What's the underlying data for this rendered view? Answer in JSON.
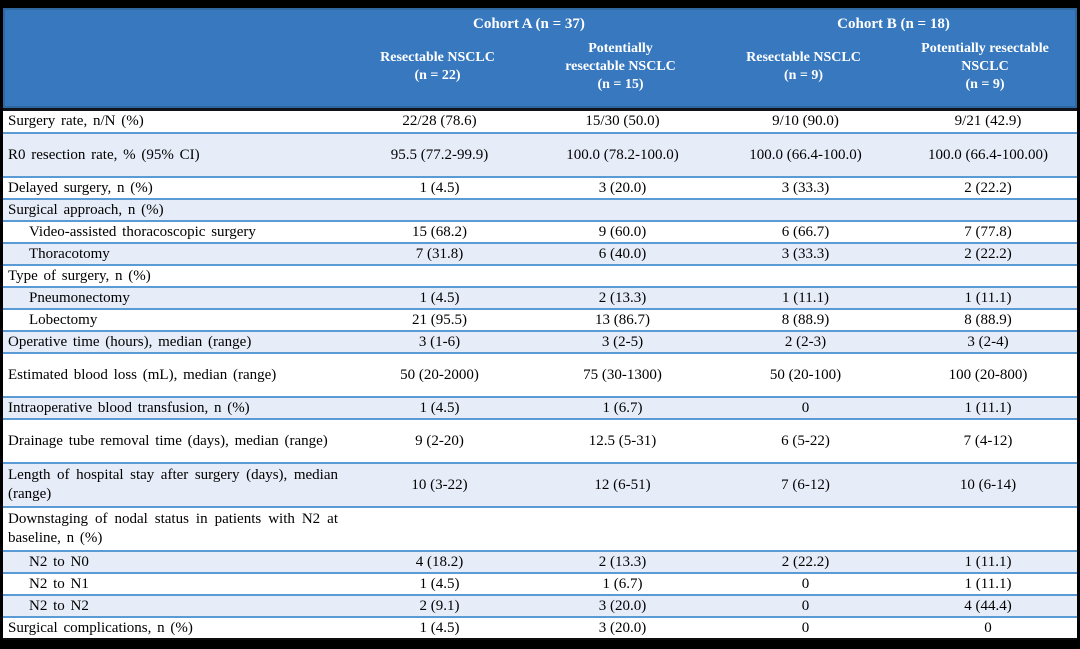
{
  "table": {
    "groups": [
      {
        "label": "Cohort A (n = 37)"
      },
      {
        "label": "Cohort B (n = 18)"
      }
    ],
    "columns": [
      "Resectable NSCLC\n(n = 22)",
      "Potentially\nresectable NSCLC\n(n = 15)",
      "Resectable NSCLC\n(n = 9)",
      "Potentially resectable\nNSCLC\n(n = 9)"
    ],
    "rows": [
      {
        "label": "Surgery rate, n/N (%)",
        "indent": false,
        "tall": false,
        "values": [
          "22/28 (78.6)",
          "15/30 (50.0)",
          "9/10 (90.0)",
          "9/21 (42.9)"
        ]
      },
      {
        "label": "R0 resection rate, % (95% CI)",
        "indent": false,
        "tall": true,
        "values": [
          "95.5 (77.2-99.9)",
          "100.0 (78.2-100.0)",
          "100.0 (66.4-100.0)",
          "100.0 (66.4-100.00)"
        ]
      },
      {
        "label": "Delayed surgery, n (%)",
        "indent": false,
        "tall": false,
        "values": [
          "1 (4.5)",
          "3 (20.0)",
          "3 (33.3)",
          "2 (22.2)"
        ]
      },
      {
        "label": "Surgical approach, n (%)",
        "indent": false,
        "tall": false,
        "values": [
          "",
          "",
          "",
          ""
        ]
      },
      {
        "label": "Video-assisted thoracoscopic surgery",
        "indent": true,
        "tall": false,
        "values": [
          "15 (68.2)",
          "9 (60.0)",
          "6 (66.7)",
          "7 (77.8)"
        ]
      },
      {
        "label": "Thoracotomy",
        "indent": true,
        "tall": false,
        "values": [
          "7 (31.8)",
          "6 (40.0)",
          "3 (33.3)",
          "2 (22.2)"
        ]
      },
      {
        "label": "Type of surgery, n (%)",
        "indent": false,
        "tall": false,
        "values": [
          "",
          "",
          "",
          ""
        ]
      },
      {
        "label": "Pneumonectomy",
        "indent": true,
        "tall": false,
        "values": [
          "1 (4.5)",
          "2 (13.3)",
          "1 (11.1)",
          "1 (11.1)"
        ]
      },
      {
        "label": "Lobectomy",
        "indent": true,
        "tall": false,
        "values": [
          "21 (95.5)",
          "13 (86.7)",
          "8 (88.9)",
          "8 (88.9)"
        ]
      },
      {
        "label": "Operative time (hours), median (range)",
        "indent": false,
        "tall": false,
        "values": [
          "3 (1-6)",
          "3 (2-5)",
          "2 (2-3)",
          "3 (2-4)"
        ]
      },
      {
        "label": "Estimated blood loss (mL), median (range)",
        "indent": false,
        "tall": true,
        "values": [
          "50 (20-2000)",
          "75 (30-1300)",
          "50 (20-100)",
          "100 (20-800)"
        ]
      },
      {
        "label": "Intraoperative blood transfusion, n (%)",
        "indent": false,
        "tall": false,
        "values": [
          "1 (4.5)",
          "1 (6.7)",
          "0",
          "1 (11.1)"
        ]
      },
      {
        "label": "Drainage tube removal time (days), median (range)",
        "indent": false,
        "tall": true,
        "values": [
          "9 (2-20)",
          "12.5 (5-31)",
          "6 (5-22)",
          "7 (4-12)"
        ]
      },
      {
        "label": "Length of hospital stay after surgery (days), median (range)",
        "indent": false,
        "tall": true,
        "values": [
          "10 (3-22)",
          "12 (6-51)",
          "7 (6-12)",
          "10 (6-14)"
        ]
      },
      {
        "label": "Downstaging of nodal status in patients with N2 at baseline, n (%)",
        "indent": false,
        "tall": true,
        "values": [
          "",
          "",
          "",
          ""
        ]
      },
      {
        "label": "N2 to N0",
        "indent": true,
        "tall": false,
        "values": [
          "4 (18.2)",
          "2 (13.3)",
          "2 (22.2)",
          "1 (11.1)"
        ]
      },
      {
        "label": "N2 to N1",
        "indent": true,
        "tall": false,
        "values": [
          "1 (4.5)",
          "1 (6.7)",
          "0",
          "1 (11.1)"
        ]
      },
      {
        "label": "N2 to N2",
        "indent": true,
        "tall": false,
        "values": [
          "2 (9.1)",
          "3 (20.0)",
          "0",
          "4 (44.4)"
        ]
      },
      {
        "label": "Surgical complications, n (%)",
        "indent": false,
        "tall": false,
        "values": [
          "1 (4.5)",
          "3 (20.0)",
          "0",
          "0"
        ]
      }
    ]
  },
  "colors": {
    "header_bg": "#3778BE",
    "header_text": "#ffffff",
    "row_alt_bg": "#E7EDF8",
    "row_line": "#5B9BD5",
    "frame": "#000000"
  }
}
